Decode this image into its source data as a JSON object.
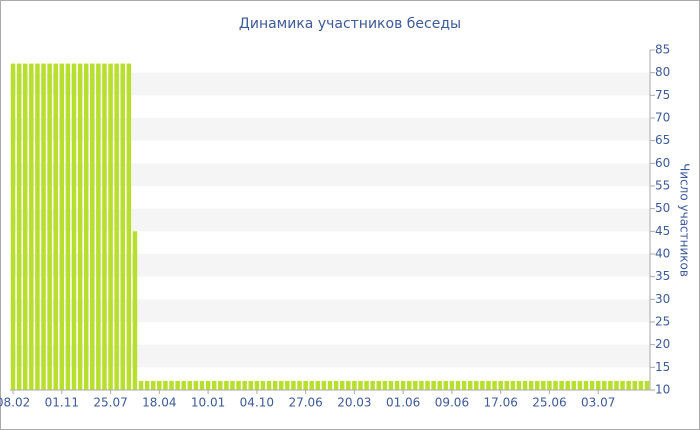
{
  "chart_data": {
    "type": "bar",
    "title": "Динамика участников беседы",
    "y_label": "Число участников",
    "categories": [
      "08.02",
      null,
      null,
      null,
      null,
      null,
      null,
      null,
      "01.11",
      null,
      null,
      null,
      null,
      null,
      null,
      null,
      "25.07",
      null,
      null,
      null,
      null,
      null,
      null,
      null,
      "18.04",
      null,
      null,
      null,
      null,
      null,
      null,
      null,
      "10.01",
      null,
      null,
      null,
      null,
      null,
      null,
      null,
      "04.10",
      null,
      null,
      null,
      null,
      null,
      null,
      null,
      "27.06",
      null,
      null,
      null,
      null,
      null,
      null,
      null,
      "20.03",
      null,
      null,
      null,
      null,
      null,
      null,
      null,
      "01.06",
      null,
      null,
      null,
      null,
      null,
      null,
      null,
      "09.06",
      null,
      null,
      null,
      null,
      null,
      null,
      null,
      "17.06",
      null,
      null,
      null,
      null,
      null,
      null,
      null,
      "25.06",
      null,
      null,
      null,
      null,
      null,
      null,
      null,
      "03.07",
      null,
      null,
      null,
      null,
      null,
      null,
      null,
      null
    ],
    "values": [
      82,
      82,
      82,
      82,
      82,
      82,
      82,
      82,
      82,
      82,
      82,
      82,
      82,
      82,
      82,
      82,
      82,
      82,
      82,
      82,
      45,
      12,
      12,
      12,
      12,
      12,
      12,
      12,
      12,
      12,
      12,
      12,
      12,
      12,
      12,
      12,
      12,
      12,
      12,
      12,
      12,
      12,
      12,
      12,
      12,
      12,
      12,
      12,
      12,
      12,
      12,
      12,
      12,
      12,
      12,
      12,
      12,
      12,
      12,
      12,
      12,
      12,
      12,
      12,
      12,
      12,
      12,
      12,
      12,
      12,
      12,
      12,
      12,
      12,
      12,
      12,
      12,
      12,
      12,
      12,
      12,
      12,
      12,
      12,
      12,
      12,
      12,
      12,
      12,
      12,
      12,
      12,
      12,
      12,
      12,
      12,
      12,
      12,
      12,
      12,
      12,
      12,
      12,
      12,
      12
    ],
    "color": "#b8de2e",
    "ylim": [
      10,
      85
    ],
    "yticks": [
      10,
      15,
      20,
      25,
      30,
      35,
      40,
      45,
      50,
      55,
      60,
      65,
      70,
      75,
      80,
      85
    ],
    "grid": true,
    "y_axis_side": "right"
  }
}
